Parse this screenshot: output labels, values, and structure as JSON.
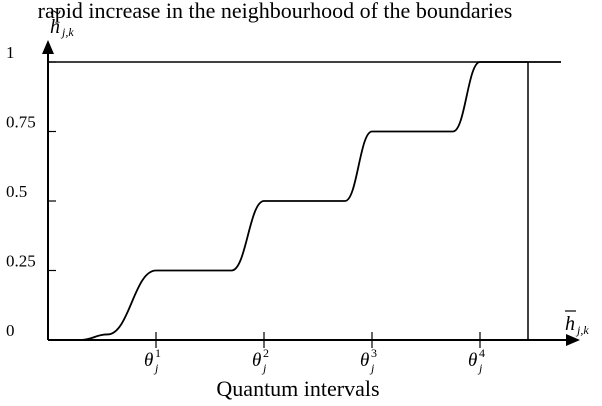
{
  "caption": "rapid increase in the neighbourhood of the boundaries",
  "chart_data": {
    "type": "line",
    "title": "",
    "xlabel": "Quantum intervals",
    "ylabel": "",
    "x_axis_symbol": {
      "base": "h",
      "sub": "j,k",
      "accent": "bar"
    },
    "y_axis_symbol": {
      "base": "h",
      "sub": "j,k",
      "accent": "tilde"
    },
    "ylim": [
      0,
      1
    ],
    "y_ticks": [
      {
        "value": 0,
        "label": "0"
      },
      {
        "value": 0.25,
        "label": "0.25"
      },
      {
        "value": 0.5,
        "label": "0.5"
      },
      {
        "value": 0.75,
        "label": "0.75"
      },
      {
        "value": 1,
        "label": "1"
      }
    ],
    "xlim": [
      0,
      5
    ],
    "x_ticks": [
      {
        "value": 1,
        "base": "θ",
        "sup": "1",
        "sub": "j"
      },
      {
        "value": 2,
        "base": "θ",
        "sup": "2",
        "sub": "j"
      },
      {
        "value": 3,
        "base": "θ",
        "sup": "3",
        "sub": "j"
      },
      {
        "value": 4,
        "base": "θ",
        "sup": "4",
        "sub": "j"
      }
    ],
    "grid": false,
    "series": [
      {
        "x": [
          0.3,
          0.55,
          1.0,
          1.45,
          1.7,
          2.0,
          2.3,
          2.45,
          2.75,
          3.0,
          3.3,
          3.45,
          3.75,
          4.0,
          4.3,
          4.48,
          4.75
        ],
        "y": [
          0,
          0.02,
          0.25,
          0.25,
          0.25,
          0.5,
          0.5,
          0.5,
          0.5,
          0.75,
          0.75,
          0.75,
          0.75,
          1.0,
          1.0,
          1.0,
          1.0
        ]
      }
    ]
  }
}
